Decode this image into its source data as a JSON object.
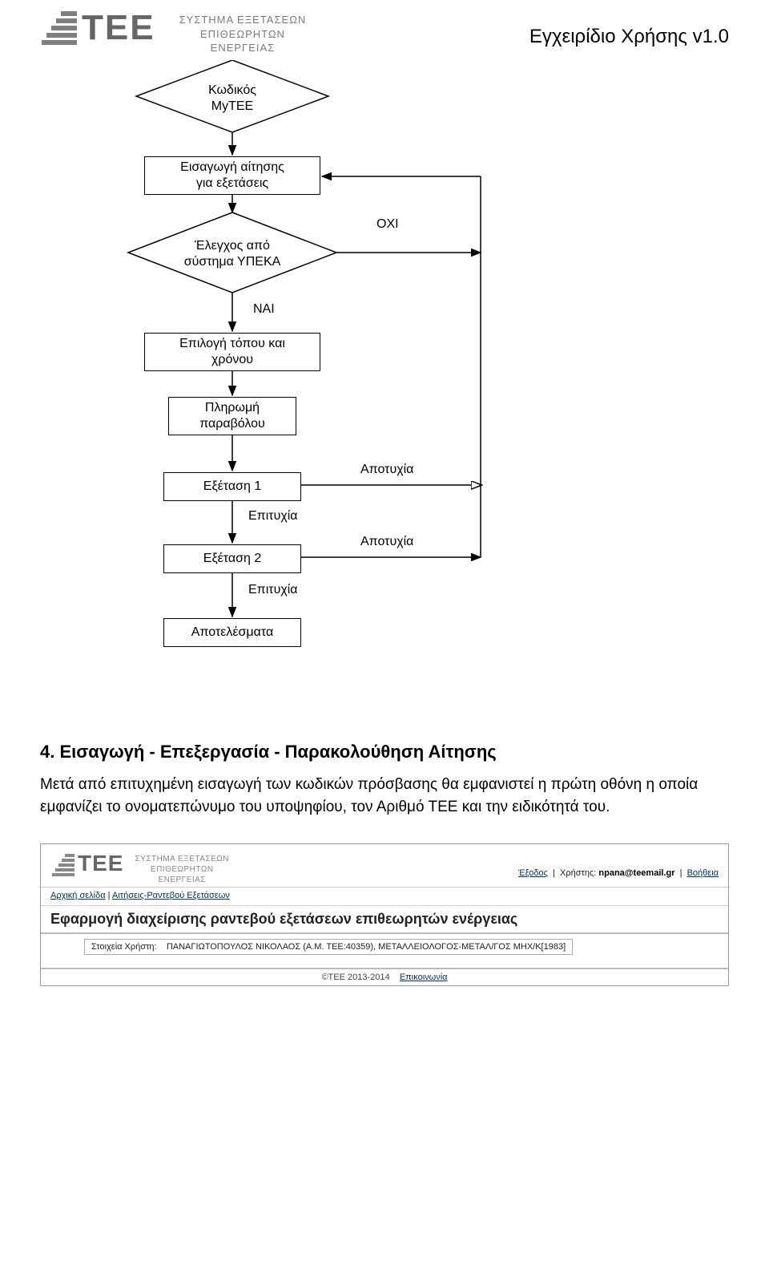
{
  "header": {
    "logo_text": "TEE",
    "sys_line1": "ΣΥΣΤΗΜΑ ΕΞΕΤΑΣΕΩΝ",
    "sys_line2": "ΕΠΙΘΕΩΡΗΤΩΝ",
    "sys_line3": "ΕΝΕΡΓΕΙΑΣ",
    "page_title": "Εγχειρίδιο Χρήσης v1.0"
  },
  "flow": {
    "type": "flowchart",
    "stroke": "#000000",
    "stroke_width": 1.5,
    "bg": "#ffffff",
    "font_size": 16,
    "nodes": {
      "d1": "Κωδικός\nMyTEE",
      "b1": "Εισαγωγή αίτησης\nγια εξετάσεις",
      "d2": "Έλεγχος από\nσύστημα ΥΠΕΚΑ",
      "b2": "Επιλογή τόπου και\nχρόνου",
      "b3": "Πληρωμή\nπαραβόλου",
      "b4": "Εξέταση 1",
      "b5": "Εξέταση 2",
      "b6": "Αποτελέσματα"
    },
    "labels": {
      "oxi": "ΟΧΙ",
      "nai": "ΝΑΙ",
      "epit1": "Επιτυχία",
      "epit2": "Επιτυχία",
      "apot1": "Αποτυχία",
      "apot2": "Αποτυχία"
    }
  },
  "section4": {
    "title": "4.  Εισαγωγή - Επεξεργασία - Παρακολούθηση Αίτησης",
    "paragraph": "Μετά από επιτυχημένη εισαγωγή των κωδικών πρόσβασης θα εμφανιστεί η πρώτη οθόνη η οποία εμφανίζει το ονοματεπώνυμο του υποψηφίου, τον Αριθμό ΤΕΕ και την ειδικότητά του."
  },
  "screenshot": {
    "logo_text": "TEE",
    "sys_line1": "ΣΥΣΤΗΜΑ ΕΞΕΤΑΣΕΩΝ",
    "sys_line2": "ΕΠΙΘΕΩΡΗΤΩΝ",
    "sys_line3": "ΕΝΕΡΓΕΙΑΣ",
    "link_exit": "Έξοδος",
    "user_label": "Χρήστης:",
    "user_value": "npana@teemail.gr",
    "link_help": "Βοήθεια",
    "crumb_home": "Αρχική σελίδα",
    "crumb_sep": " | ",
    "crumb_page": "Αιτήσεις-Ραντεβού Εξετάσεων",
    "app_title": "Εφαρμογή διαχείρισης ραντεβού εξετάσεων επιθεωρητών ενέργειας",
    "userbox_label": "Στοιχεία Χρήστη:",
    "userbox_value": "ΠΑΝΑΓΙΩΤΟΠΟΥΛΟΣ ΝΙΚΟΛΑΟΣ (A.M. TEE:40359), ΜΕΤΑΛΛΕΙΟΛΟΓΟΣ-ΜΕΤΑΛ/ΓΟΣ ΜΗΧ/Κ[1983]",
    "footer_copy": "©TEE 2013-2014",
    "footer_link": "Επικοινωνία"
  }
}
